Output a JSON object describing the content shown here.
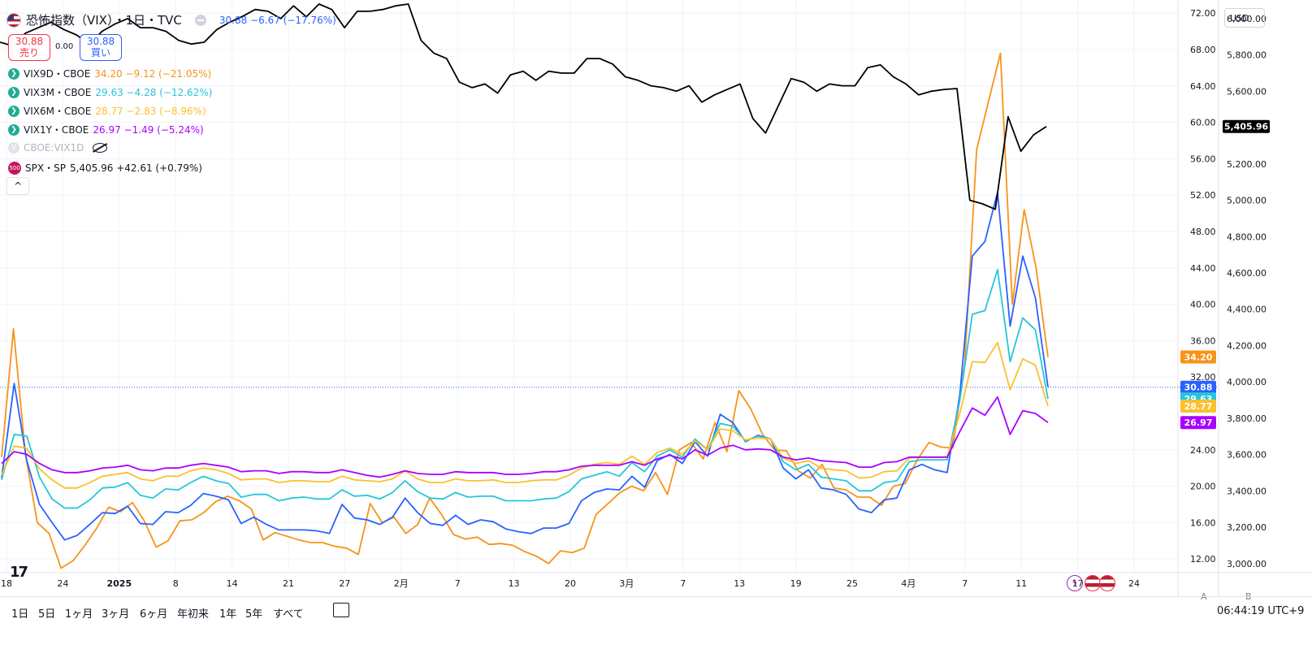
{
  "header": {
    "title": "恐怖指数（VIX）・1日・TVC",
    "main_values": "30.88 −6.67 (−17.76%)"
  },
  "trade": {
    "sell_price": "30.88",
    "sell_label": "売り",
    "spread": "0.00",
    "buy_price": "30.88",
    "buy_label": "買い"
  },
  "legend": [
    {
      "name": "VIX9D・CBOE",
      "values": "34.20 −9.12 (−21.05%)",
      "color": "#f7931a"
    },
    {
      "name": "VIX3M・CBOE",
      "values": "29.63 −4.28 (−12.62%)",
      "color": "#26c6da"
    },
    {
      "name": "VIX6M・CBOE",
      "values": "28.77 −2.83 (−8.96%)",
      "color": "#fbc02d"
    },
    {
      "name": "VIX1Y・CBOE",
      "values": "26.97 −1.49 (−5.24%)",
      "color": "#aa00ff"
    }
  ],
  "hidden_series": "CBOE:VIX1D",
  "spx": {
    "name": "SPX・SP",
    "values": "5,405.96 +42.61 (+0.79%)",
    "badge": "500"
  },
  "currency": "USD",
  "ranges": [
    "1日",
    "5日",
    "1ヶ月",
    "3ヶ月",
    "6ヶ月",
    "年初来",
    "1年",
    "5年",
    "すべて"
  ],
  "clock": "06:44:19 UTC+9",
  "axis_buttons": [
    "A",
    "B"
  ],
  "icons": {
    "bolt": "bolt-icon",
    "flag": "us-flag-icon",
    "collapse": "chevron-up-icon",
    "logo": "tradingview-logo",
    "calendar": "calendar-range-icon",
    "eye": "eye-off-icon"
  },
  "chart_data": {
    "type": "line",
    "x_tick_labels": [
      "18",
      "24",
      "2025",
      "8",
      "14",
      "21",
      "27",
      "2月",
      "7",
      "13",
      "20",
      "3月",
      "7",
      "13",
      "19",
      "25",
      "4月",
      "7",
      "11",
      "17",
      "24"
    ],
    "left_axis": {
      "ticks": [
        "72.00",
        "68.00",
        "64.00",
        "60.00",
        "56.00",
        "52.00",
        "48.00",
        "44.00",
        "40.00",
        "36.00",
        "32.00",
        "24.00",
        "20.00",
        "16.00",
        "12.00"
      ],
      "ylim": [
        10.5,
        73
      ]
    },
    "right_axis": {
      "ticks": [
        "6,000.00",
        "5,800.00",
        "5,600.00",
        "5,400.00",
        "5,200.00",
        "5,000.00",
        "4,800.00",
        "4,600.00",
        "4,400.00",
        "4,200.00",
        "4,000.00",
        "3,800.00",
        "3,600.00",
        "3,400.00",
        "3,200.00",
        "3,000.00"
      ],
      "ylim": [
        2950,
        6080
      ]
    },
    "vix_last": 30.88,
    "series": [
      {
        "name": "VIX9D",
        "color": "#f7931a",
        "last_label": "34.20",
        "values": [
          23.2,
          37.3,
          23.5,
          16.0,
          14.8,
          11.0,
          11.8,
          13.5,
          15.4,
          17.7,
          17.2,
          18.2,
          16.2,
          13.3,
          14.0,
          16.2,
          16.3,
          17.1,
          18.3,
          18.9,
          18.4,
          17.5,
          14.1,
          14.9,
          14.5,
          14.1,
          13.8,
          13.8,
          13.4,
          13.2,
          12.5,
          18.1,
          16.0,
          16.6,
          14.8,
          15.8,
          18.7,
          16.9,
          14.7,
          14.2,
          14.4,
          13.6,
          13.7,
          13.5,
          12.8,
          12.3,
          11.5,
          12.9,
          12.7,
          13.2,
          16.9,
          18.1,
          19.3,
          20.0,
          19.5,
          21.5,
          19.1,
          24.0,
          24.8,
          23.0,
          27.0,
          23.8,
          30.5,
          28.5,
          25.7,
          24.0,
          23.9,
          21.7,
          20.9,
          22.4,
          19.8,
          19.6,
          18.8,
          18.8,
          17.9,
          20.0,
          20.3,
          22.9,
          24.8,
          24.3,
          24.2,
          33.5,
          57.0,
          62.3,
          67.6,
          40.0,
          50.4,
          44.0,
          34.2
        ]
      },
      {
        "name": "VIX",
        "color": "#2962ff",
        "last_label": "30.88",
        "values": [
          20.9,
          31.3,
          22.8,
          18.0,
          16.0,
          14.1,
          14.6,
          15.8,
          17.1,
          17.0,
          17.8,
          15.9,
          15.8,
          17.2,
          17.1,
          17.9,
          19.2,
          18.9,
          18.5,
          15.9,
          16.6,
          15.8,
          15.2,
          15.2,
          15.2,
          15.1,
          14.8,
          18.0,
          16.5,
          16.3,
          15.8,
          16.6,
          18.7,
          17.1,
          15.9,
          15.7,
          16.8,
          15.8,
          16.3,
          16.1,
          15.3,
          15.0,
          14.8,
          15.4,
          15.4,
          15.9,
          18.4,
          19.3,
          19.7,
          19.6,
          21.1,
          19.9,
          22.8,
          23.5,
          22.5,
          24.9,
          23.3,
          27.9,
          27.0,
          24.9,
          25.6,
          25.2,
          22.0,
          20.8,
          21.8,
          19.8,
          19.6,
          19.1,
          17.5,
          17.1,
          18.5,
          18.7,
          21.8,
          22.4,
          21.8,
          21.5,
          30.0,
          45.3,
          46.9,
          52.3,
          37.6,
          45.3,
          40.7,
          30.9
        ]
      },
      {
        "name": "VIX3M",
        "color": "#26c6da",
        "last_label": "29.63",
        "values": [
          20.7,
          25.7,
          25.5,
          21.0,
          18.6,
          17.6,
          17.6,
          18.5,
          19.8,
          19.9,
          20.4,
          19.0,
          18.7,
          19.7,
          19.6,
          20.4,
          21.1,
          20.6,
          20.3,
          18.8,
          19.1,
          19.1,
          18.4,
          18.7,
          18.8,
          18.6,
          18.6,
          19.6,
          18.9,
          19.0,
          18.6,
          19.3,
          20.6,
          19.4,
          18.7,
          18.6,
          19.3,
          18.8,
          18.9,
          18.9,
          18.4,
          18.4,
          18.4,
          18.6,
          18.7,
          19.4,
          20.8,
          21.2,
          21.6,
          21.1,
          22.6,
          21.6,
          23.3,
          24.0,
          23.2,
          25.2,
          24.0,
          26.9,
          26.6,
          25.0,
          25.5,
          25.2,
          22.7,
          21.8,
          22.4,
          21.0,
          20.8,
          20.6,
          19.5,
          19.5,
          20.4,
          20.6,
          22.7,
          22.9,
          22.9,
          22.9,
          29.4,
          38.9,
          39.3,
          43.8,
          33.7,
          38.5,
          37.2,
          29.6
        ]
      },
      {
        "name": "VIX6M",
        "color": "#fbc02d",
        "last_label": "28.77",
        "values": [
          21.2,
          24.4,
          24.2,
          21.9,
          20.7,
          19.8,
          19.8,
          20.4,
          21.1,
          21.3,
          21.5,
          20.8,
          20.6,
          21.1,
          21.1,
          21.7,
          22.0,
          21.8,
          21.4,
          20.7,
          20.8,
          20.8,
          20.4,
          20.6,
          20.6,
          20.5,
          20.5,
          21.1,
          20.7,
          20.6,
          20.5,
          20.8,
          21.7,
          20.8,
          20.4,
          20.4,
          20.8,
          20.6,
          20.6,
          20.7,
          20.4,
          20.4,
          20.6,
          20.7,
          20.7,
          21.2,
          22.0,
          22.4,
          22.6,
          22.4,
          23.3,
          22.4,
          23.7,
          24.2,
          23.5,
          25.0,
          24.0,
          26.3,
          26.1,
          25.1,
          25.3,
          25.2,
          23.1,
          22.5,
          22.8,
          22.0,
          21.8,
          21.7,
          20.9,
          21.0,
          21.6,
          21.7,
          23.1,
          23.2,
          23.2,
          23.2,
          28.0,
          33.7,
          33.6,
          35.8,
          30.6,
          34.0,
          33.3,
          28.8
        ]
      },
      {
        "name": "VIX1Y",
        "color": "#aa00ff",
        "last_label": "26.97",
        "values": [
          22.5,
          23.8,
          23.5,
          22.5,
          21.8,
          21.5,
          21.5,
          21.7,
          22.0,
          22.1,
          22.3,
          21.8,
          21.7,
          22.0,
          22.0,
          22.3,
          22.5,
          22.3,
          22.1,
          21.6,
          21.7,
          21.7,
          21.4,
          21.6,
          21.6,
          21.5,
          21.5,
          21.8,
          21.5,
          21.2,
          21.0,
          21.3,
          21.7,
          21.4,
          21.3,
          21.3,
          21.6,
          21.5,
          21.5,
          21.5,
          21.3,
          21.3,
          21.4,
          21.6,
          21.6,
          21.8,
          22.2,
          22.3,
          22.3,
          22.3,
          22.7,
          22.3,
          23.0,
          23.4,
          23.0,
          24.0,
          23.4,
          24.2,
          24.5,
          24.0,
          24.1,
          24.0,
          23.2,
          22.9,
          23.1,
          22.8,
          22.7,
          22.6,
          22.1,
          22.1,
          22.6,
          22.7,
          23.2,
          23.2,
          23.2,
          23.2,
          26.0,
          28.6,
          27.8,
          29.8,
          25.7,
          28.3,
          28.0,
          27.0
        ]
      },
      {
        "name": "SPX",
        "color": "#000000",
        "axis": "right",
        "last_label": "5,405.96",
        "values": [
          5870,
          5850,
          5920,
          5950,
          5980,
          5940,
          5910,
          5860,
          5930,
          5970,
          6000,
          5950,
          5950,
          5930,
          5880,
          5860,
          5870,
          5940,
          5980,
          6012,
          6050,
          6040,
          6000,
          6070,
          6010,
          6080,
          6050,
          5950,
          6040,
          6040,
          6050,
          6070,
          6080,
          5880,
          5810,
          5780,
          5650,
          5620,
          5640,
          5590,
          5690,
          5710,
          5660,
          5710,
          5700,
          5700,
          5780,
          5780,
          5750,
          5680,
          5660,
          5630,
          5620,
          5600,
          5630,
          5540,
          5580,
          5610,
          5640,
          5450,
          5370,
          5520,
          5670,
          5650,
          5600,
          5640,
          5630,
          5630,
          5730,
          5745,
          5680,
          5640,
          5580,
          5600,
          5610,
          5615,
          5000,
          4980,
          4950,
          5460,
          5270,
          5360,
          5406
        ]
      }
    ]
  }
}
